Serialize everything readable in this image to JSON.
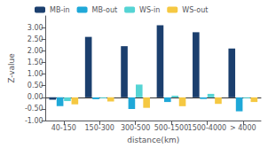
{
  "chart_data": {
    "type": "bar",
    "categories": [
      "40-150",
      "150-300",
      "300-500",
      "500-1500",
      "1500-4000",
      "> 4000"
    ],
    "series": [
      {
        "name": "MB-in",
        "color": "#1b3f6e",
        "values": [
          -0.1,
          2.6,
          2.2,
          3.1,
          2.8,
          2.1
        ]
      },
      {
        "name": "MB-out",
        "color": "#1fa8d8",
        "values": [
          -0.38,
          -0.08,
          -0.5,
          -0.2,
          -0.07,
          -0.6
        ]
      },
      {
        "name": "WS-in",
        "color": "#55d4d4",
        "values": [
          -0.16,
          -0.04,
          0.55,
          0.07,
          0.15,
          -0.04
        ]
      },
      {
        "name": "WS-out",
        "color": "#f5c842",
        "values": [
          -0.3,
          -0.18,
          -0.45,
          -0.38,
          -0.28,
          -0.2
        ]
      }
    ],
    "xlabel": "distance(km)",
    "ylabel": "Z-value",
    "ylim": [
      -1.0,
      3.5
    ],
    "yticks": [
      {
        "value": -1.0,
        "label": "-1.00"
      },
      {
        "value": -0.5,
        "label": "-0.50"
      },
      {
        "value": 0.0,
        "label": "0.00"
      },
      {
        "value": 0.5,
        "label": "0.50"
      },
      {
        "value": 1.0,
        "label": "1.00"
      },
      {
        "value": 1.5,
        "label": "1.50"
      },
      {
        "value": 2.0,
        "label": "2.00"
      },
      {
        "value": 2.5,
        "label": "2.50"
      },
      {
        "value": 3.0,
        "label": "3.00"
      }
    ],
    "grid": false,
    "legend": "upper left"
  }
}
